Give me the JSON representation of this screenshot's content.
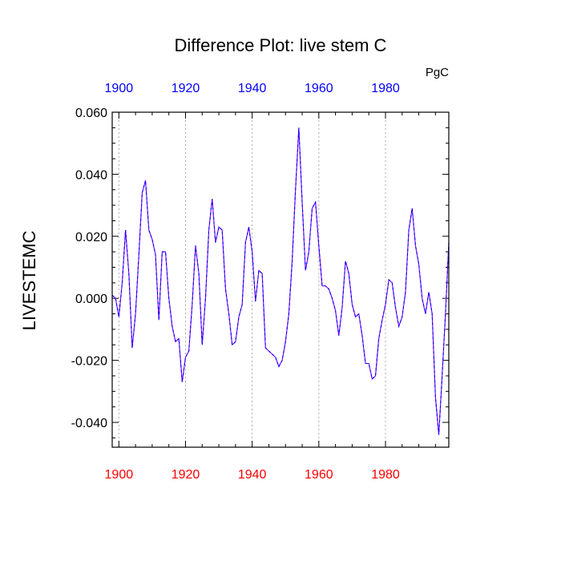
{
  "chart_data": {
    "type": "line",
    "title": "Difference Plot: live stem C",
    "units": "PgC",
    "ylabel": "LIVESTEMC",
    "xlabel": "",
    "xlim": [
      1898,
      1999
    ],
    "ylim": [
      -0.048,
      0.06
    ],
    "y_ticks": [
      0.06,
      0.04,
      0.02,
      0.0,
      -0.02,
      -0.04
    ],
    "y_tick_labels": [
      "0.060",
      "0.040",
      "0.020",
      "0.000",
      "-0.020",
      "-0.040"
    ],
    "x_ticks": [
      1900,
      1920,
      1940,
      1960,
      1980
    ],
    "x_tick_labels": [
      "1900",
      "1920",
      "1940",
      "1960",
      "1980"
    ],
    "bottom_tick_color": "#ff0000",
    "top_tick_color": "#0000ff",
    "grid": "vertical dotted at major x ticks",
    "series": [
      {
        "line_color": "#7f00ff",
        "dash_color": "#0000ff",
        "x": [
          1898,
          1899,
          1900,
          1901,
          1902,
          1903,
          1904,
          1905,
          1906,
          1907,
          1908,
          1909,
          1910,
          1911,
          1912,
          1913,
          1914,
          1915,
          1916,
          1917,
          1918,
          1919,
          1920,
          1921,
          1922,
          1923,
          1924,
          1925,
          1926,
          1927,
          1928,
          1929,
          1930,
          1931,
          1932,
          1933,
          1934,
          1935,
          1936,
          1937,
          1938,
          1939,
          1940,
          1941,
          1942,
          1943,
          1944,
          1945,
          1946,
          1947,
          1948,
          1949,
          1950,
          1951,
          1952,
          1953,
          1954,
          1955,
          1956,
          1957,
          1958,
          1959,
          1960,
          1961,
          1962,
          1963,
          1964,
          1965,
          1966,
          1967,
          1968,
          1969,
          1970,
          1971,
          1972,
          1973,
          1974,
          1975,
          1976,
          1977,
          1978,
          1979,
          1980,
          1981,
          1982,
          1983,
          1984,
          1985,
          1986,
          1987,
          1988,
          1989,
          1990,
          1991,
          1992,
          1993,
          1994,
          1995,
          1996,
          1997,
          1998,
          1999
        ],
        "y": [
          0.001,
          0.0,
          -0.006,
          0.005,
          0.022,
          0.008,
          -0.016,
          -0.005,
          0.014,
          0.034,
          0.038,
          0.022,
          0.019,
          0.014,
          -0.007,
          0.015,
          0.015,
          0.0,
          -0.009,
          -0.014,
          -0.013,
          -0.027,
          -0.019,
          -0.017,
          -0.002,
          0.017,
          0.008,
          -0.015,
          0.0,
          0.022,
          0.032,
          0.018,
          0.023,
          0.022,
          0.003,
          -0.005,
          -0.015,
          -0.014,
          -0.006,
          -0.002,
          0.018,
          0.023,
          0.015,
          -0.001,
          0.009,
          0.008,
          -0.016,
          -0.017,
          -0.018,
          -0.019,
          -0.022,
          -0.02,
          -0.014,
          -0.005,
          0.012,
          0.035,
          0.055,
          0.031,
          0.009,
          0.015,
          0.029,
          0.031,
          0.017,
          0.004,
          0.004,
          0.003,
          0.0,
          -0.004,
          -0.012,
          -0.003,
          0.012,
          0.008,
          -0.002,
          -0.006,
          -0.005,
          -0.012,
          -0.021,
          -0.021,
          -0.026,
          -0.025,
          -0.013,
          -0.007,
          -0.002,
          0.006,
          0.005,
          -0.003,
          -0.009,
          -0.006,
          0.002,
          0.022,
          0.029,
          0.017,
          0.011,
          0.0,
          -0.005,
          0.002,
          -0.005,
          -0.032,
          -0.044,
          -0.025,
          -0.005,
          0.018
        ]
      }
    ]
  }
}
